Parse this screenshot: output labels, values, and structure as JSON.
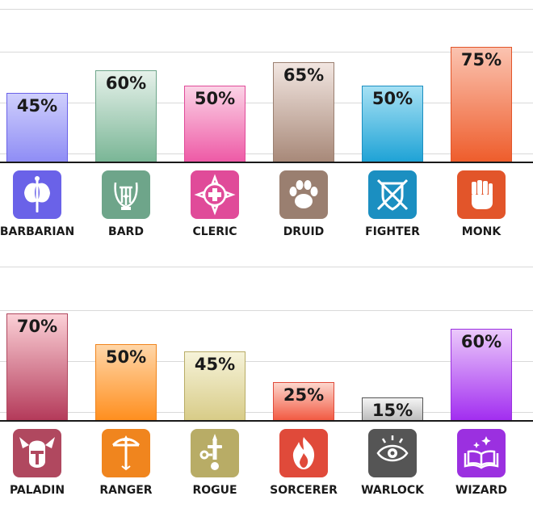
{
  "chart_data": [
    {
      "type": "bar",
      "categories": [
        "BARBARIAN",
        "BARD",
        "CLERIC",
        "DRUID",
        "FIGHTER",
        "MONK"
      ],
      "values": [
        45,
        60,
        50,
        65,
        50,
        75
      ],
      "value_labels": [
        "45%",
        "60%",
        "50%",
        "65%",
        "50%",
        "75%"
      ],
      "icons": [
        "double-axe-icon",
        "lyre-icon",
        "holy-symbol-icon",
        "paw-print-icon",
        "crossed-sword-shield-icon",
        "fist-icon"
      ],
      "colors": [
        [
          "#cfcffc",
          "#8f8df5",
          "#6a62e8"
        ],
        [
          "#e6f1ea",
          "#7ab696",
          "#6ea58a"
        ],
        [
          "#fbd3e6",
          "#ee5aa6",
          "#e04b99"
        ],
        [
          "#f2e6e1",
          "#a88979",
          "#9a7f70"
        ],
        [
          "#a6e1f4",
          "#1fa3d6",
          "#1b8fc1"
        ],
        [
          "#fbc3b0",
          "#ee5d2c",
          "#e2552a"
        ]
      ],
      "title": "",
      "xlabel": "",
      "ylabel": "",
      "ylim": [
        0,
        100
      ],
      "grid": true,
      "legend": "none"
    },
    {
      "type": "bar",
      "categories": [
        "PALADIN",
        "RANGER",
        "ROGUE",
        "SORCERER",
        "WARLOCK",
        "WIZARD"
      ],
      "values": [
        70,
        50,
        45,
        25,
        15,
        60
      ],
      "value_labels": [
        "70%",
        "50%",
        "45%",
        "25%",
        "15%",
        "60%"
      ],
      "icons": [
        "winged-helm-icon",
        "bow-arrow-icon",
        "dagger-key-icon",
        "flame-icon",
        "all-seeing-eye-icon",
        "spellbook-icon"
      ],
      "colors": [
        [
          "#fbd0d6",
          "#b43a5a",
          "#b0485f"
        ],
        [
          "#ffd6a8",
          "#ff8f1f",
          "#f0851e"
        ],
        [
          "#f6f3d9",
          "#d8cc88",
          "#b8ac66"
        ],
        [
          "#fcd6cc",
          "#f25a42",
          "#e04a3a"
        ],
        [
          "#f4f4f4",
          "#bdbdbd",
          "#555555"
        ],
        [
          "#ebc9fb",
          "#a22ef0",
          "#9b30e0"
        ]
      ],
      "title": "",
      "xlabel": "",
      "ylabel": "",
      "ylim": [
        0,
        100
      ],
      "grid": true,
      "legend": "none"
    }
  ]
}
